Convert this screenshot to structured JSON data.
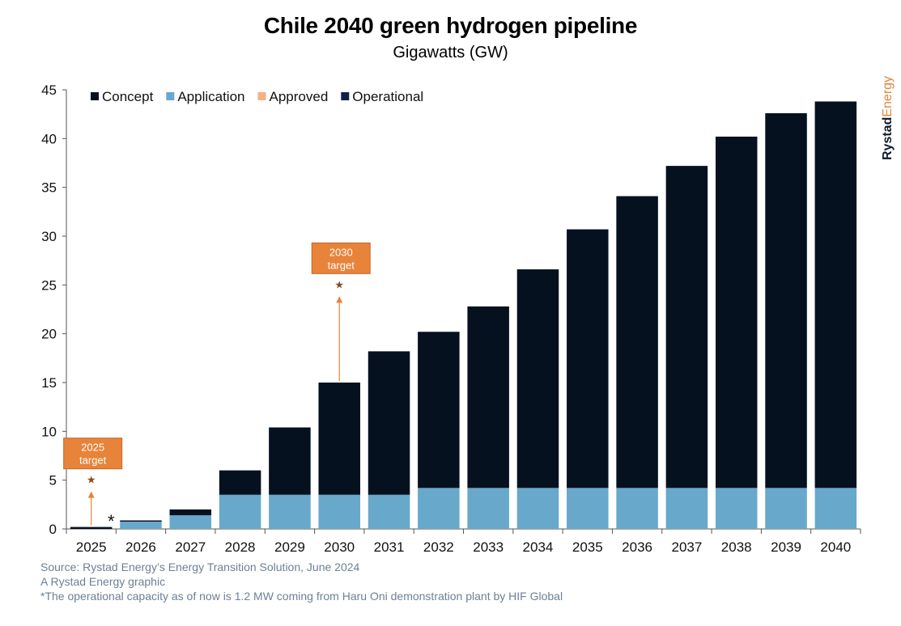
{
  "title": "Chile 2040 green hydrogen pipeline",
  "subtitle": "Gigawatts (GW)",
  "brand": {
    "part1": "Rystad",
    "part2": "Energy"
  },
  "footer": {
    "source": "Source: Rystad Energy’s Energy Transition Solution, June 2024",
    "credit": "A Rystad Energy graphic",
    "note": "*The operational capacity as of now is 1.2 MW coming from Haru Oni demonstration plant by HIF Global"
  },
  "colors": {
    "concept": "#06111f",
    "application": "#67a8cb",
    "approved": "#f3b184",
    "operational": "#0e2340",
    "target": "#e8833a",
    "target_star": "#8a4b1e"
  },
  "chart_data": {
    "type": "bar",
    "stacked": true,
    "categories": [
      "2025",
      "2026",
      "2027",
      "2028",
      "2029",
      "2030",
      "2031",
      "2032",
      "2033",
      "2034",
      "2035",
      "2036",
      "2037",
      "2038",
      "2039",
      "2040"
    ],
    "series": [
      {
        "name": "Operational",
        "values": [
          0.0012,
          0,
          0,
          0,
          0,
          0,
          0,
          0,
          0,
          0,
          0,
          0,
          0,
          0,
          0,
          0
        ]
      },
      {
        "name": "Approved",
        "values": [
          0,
          0,
          0,
          0,
          0,
          0,
          0,
          0,
          0,
          0,
          0,
          0,
          0,
          0,
          0,
          0
        ]
      },
      {
        "name": "Application",
        "values": [
          0,
          0.75,
          1.4,
          3.5,
          3.5,
          3.5,
          3.5,
          4.2,
          4.2,
          4.2,
          4.2,
          4.2,
          4.2,
          4.2,
          4.2,
          4.2
        ]
      },
      {
        "name": "Concept",
        "values": [
          0.2,
          0.1,
          0.6,
          2.5,
          6.9,
          11.5,
          14.7,
          16.0,
          18.6,
          22.4,
          26.5,
          29.9,
          33.0,
          36.0,
          38.4,
          39.6
        ]
      }
    ],
    "legend_order": [
      "Concept",
      "Application",
      "Approved",
      "Operational"
    ],
    "legend_position": "top-left",
    "ylim": [
      0,
      45
    ],
    "yticks": [
      0,
      5,
      10,
      15,
      20,
      25,
      30,
      35,
      40,
      45
    ],
    "grid": false,
    "operational_marker": "*",
    "annotations": [
      {
        "category": "2025",
        "label_line1": "2025",
        "label_line2": "target",
        "value": 5
      },
      {
        "category": "2030",
        "label_line1": "2030",
        "label_line2": "target",
        "value": 25
      }
    ]
  }
}
